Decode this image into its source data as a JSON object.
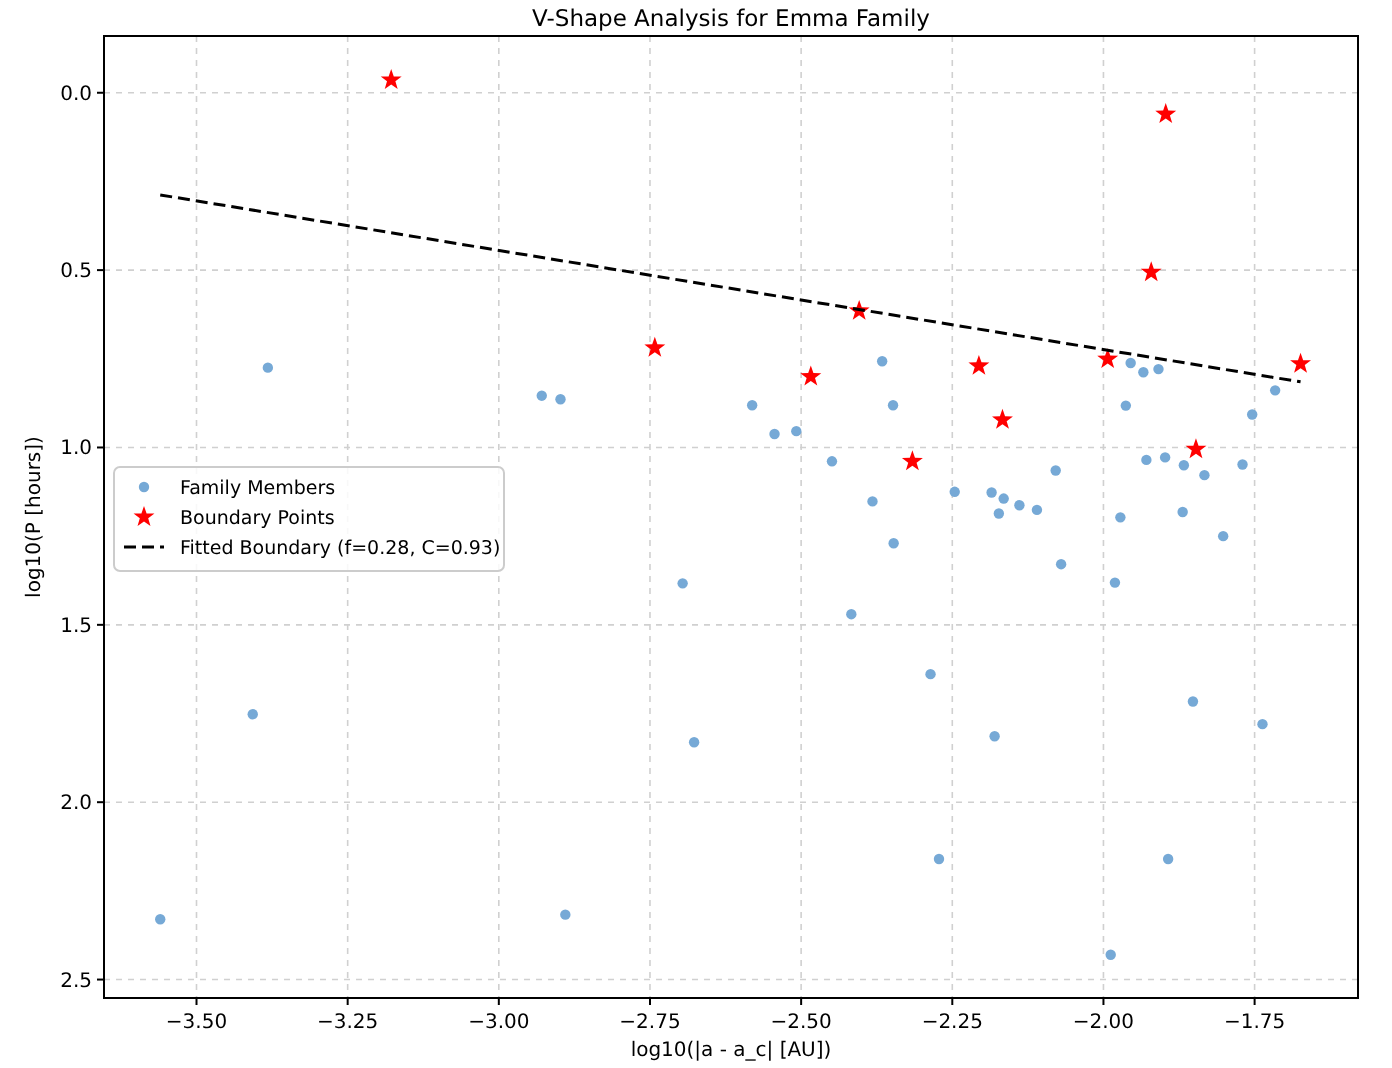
{
  "chart_data": {
    "type": "scatter",
    "title": "V-Shape Analysis for Emma Family",
    "xlabel": "log10(|a - a_c| [AU])",
    "ylabel": "log10(P [hours])",
    "xlim": [
      -3.653,
      -1.579
    ],
    "ylim": [
      2.552,
      -0.16
    ],
    "xticks": [
      {
        "value": -3.5,
        "label": "−3.50"
      },
      {
        "value": -3.25,
        "label": "−3.25"
      },
      {
        "value": -3,
        "label": "−3.00"
      },
      {
        "value": -2.75,
        "label": "−2.75"
      },
      {
        "value": -2.5,
        "label": "−2.50"
      },
      {
        "value": -2.25,
        "label": "−2.25"
      },
      {
        "value": -2,
        "label": "−2.00"
      },
      {
        "value": -1.75,
        "label": "−1.75"
      }
    ],
    "yticks": [
      {
        "value": 0,
        "label": "0.0"
      },
      {
        "value": 0.5,
        "label": "0.5"
      },
      {
        "value": 1,
        "label": "1.0"
      },
      {
        "value": 1.5,
        "label": "1.5"
      },
      {
        "value": 2,
        "label": "2.0"
      },
      {
        "value": 2.5,
        "label": "2.5"
      }
    ],
    "grid": true,
    "legend": "center left",
    "series": [
      {
        "name": "Family Members",
        "marker": "circle",
        "color": "#76a9d6",
        "x": [
          -3.56,
          -3.407,
          -3.382,
          -2.929,
          -2.898,
          -2.89,
          -2.696,
          -2.677,
          -2.581,
          -2.544,
          -2.508,
          -2.449,
          -2.382,
          -2.366,
          -2.348,
          -2.246,
          -2.185,
          -2.165,
          -2.173,
          -2.139,
          -2.11,
          -2.079,
          -1.972,
          -1.963,
          -1.955,
          -1.934,
          -1.909,
          -1.929,
          -1.898,
          -1.867,
          -1.833,
          -1.869,
          -1.77,
          -1.754,
          -1.716,
          -2.347,
          -2.417,
          -2.286,
          -2.18,
          -2.272,
          -2.07,
          -1.981,
          -1.802,
          -1.852,
          -1.737,
          -1.893,
          -1.988
        ],
        "values": [
          2.33,
          1.752,
          0.775,
          0.854,
          0.864,
          2.317,
          1.383,
          1.831,
          0.881,
          0.962,
          0.954,
          1.039,
          1.152,
          0.757,
          0.881,
          1.125,
          1.127,
          1.144,
          1.186,
          1.163,
          1.176,
          1.065,
          1.197,
          0.882,
          0.762,
          0.788,
          0.779,
          1.035,
          1.028,
          1.05,
          1.078,
          1.182,
          1.048,
          0.907,
          0.839,
          1.27,
          1.47,
          1.639,
          1.814,
          2.16,
          1.329,
          1.381,
          1.25,
          1.716,
          1.78,
          2.16,
          2.43
        ]
      },
      {
        "name": "Boundary Points",
        "marker": "star",
        "color": "#ff0000",
        "x": [
          -3.178,
          -2.742,
          -2.484,
          -2.404,
          -2.316,
          -2.206,
          -2.167,
          -1.993,
          -1.921,
          -1.897,
          -1.847,
          -1.674
        ],
        "values": [
          -0.036,
          0.719,
          0.8,
          0.615,
          1.039,
          0.77,
          0.922,
          0.751,
          0.506,
          0.06,
          1.005,
          0.764
        ]
      },
      {
        "name": "Fitted Boundary (f=0.28, C=0.93)",
        "type": "line",
        "line_style": "dashed",
        "color": "#000000",
        "x": [
          -3.56,
          -1.674
        ],
        "values": [
          0.288,
          0.815
        ]
      }
    ]
  }
}
